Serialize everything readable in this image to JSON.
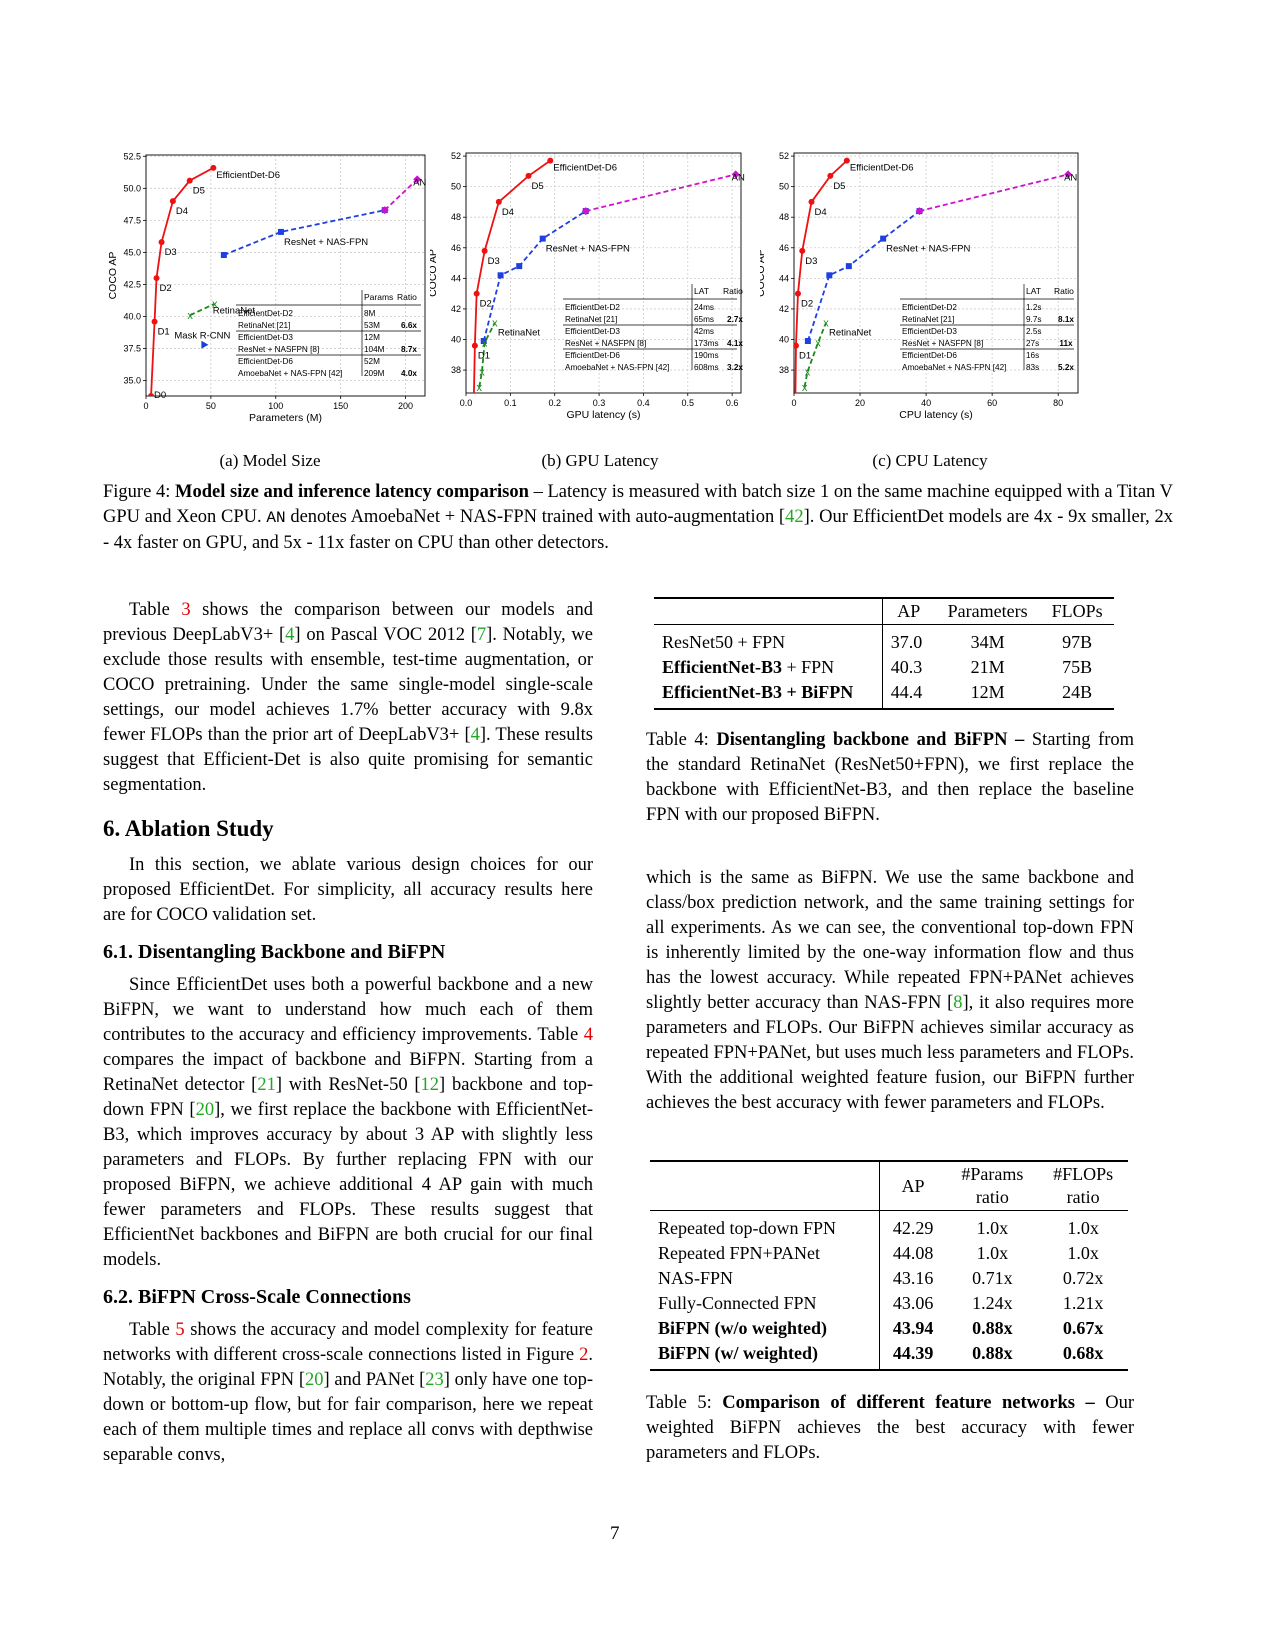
{
  "colors": {
    "efficientdet": "#ee1111",
    "resnet": "#1f3fe0",
    "amoeba": "#d010d0",
    "retinanet": "#1a8a1a",
    "maskrcnn": "#1a3fd8",
    "cite": "#22a722",
    "ref": "#e00000"
  },
  "figure": {
    "subcaptions": [
      "(a) Model Size",
      "(b) GPU Latency",
      "(c) CPU Latency"
    ],
    "caption_label": "Figure 4:",
    "caption_bold": "Model size and inference latency comparison",
    "caption_rest_1": " – Latency is measured with batch size 1 on the same machine equipped with a Titan V GPU and Xeon CPU. ",
    "caption_an": "AN",
    "caption_rest_2": " denotes AmoebaNet + NAS-FPN trained with auto-augmentation [",
    "caption_cite": "42",
    "caption_rest_3": "]. Our EfficientDet models are 4x - 9x smaller, 2x - 4x faster on GPU, and 5x - 11x faster on CPU than other detectors."
  },
  "chart_data": [
    {
      "type": "line",
      "xlabel": "Parameters (M)",
      "ylabel": "COCO AP",
      "xlim": [
        0,
        215
      ],
      "ylim": [
        33.8,
        52.6
      ],
      "xticks": [
        0,
        50,
        100,
        150,
        200
      ],
      "yticks": [
        35.0,
        37.5,
        40.0,
        42.5,
        45.0,
        47.5,
        50.0,
        52.5
      ],
      "ytick_labels": [
        "35.0",
        "37.5",
        "40.0",
        "42.5",
        "45.0",
        "47.5",
        "50.0",
        "52.5"
      ],
      "series": [
        {
          "name": "EfficientDet-D6",
          "style": "solid",
          "color": "#ee1111",
          "x": [
            3.9,
            6.6,
            8.1,
            12,
            20.7,
            33.7,
            51.9
          ],
          "y": [
            33.8,
            39.6,
            43.0,
            45.8,
            49.0,
            50.6,
            51.6
          ],
          "point_labels": [
            "D0",
            "D1",
            "D2",
            "D3",
            "D4",
            "D5",
            "EfficientDet-D6"
          ]
        },
        {
          "name": "ResNet + NAS-FPN",
          "style": "dashed",
          "color": "#1f3fe0",
          "x": [
            60,
            104,
            184
          ],
          "y": [
            44.8,
            46.6,
            48.3
          ],
          "point_labels": [
            "",
            "ResNet + NAS-FPN",
            ""
          ]
        },
        {
          "name": "AN",
          "style": "dashed",
          "color": "#d010d0",
          "x": [
            184,
            209
          ],
          "y": [
            48.3,
            50.7
          ],
          "point_labels": [
            "",
            "AN"
          ]
        },
        {
          "name": "RetinaNet",
          "style": "dashed",
          "color": "#1a8a1a",
          "x": [
            34,
            53
          ],
          "y": [
            40.1,
            41.0
          ],
          "point_labels": [
            "",
            "RetinaNet"
          ]
        },
        {
          "name": "Mask R-CNN",
          "style": "marker",
          "color": "#1a3fd8",
          "x": [
            45
          ],
          "y": [
            37.8
          ],
          "point_labels": [
            "Mask R-CNN"
          ]
        }
      ],
      "inset_table": {
        "headers": [
          "",
          "Params",
          "Ratio"
        ],
        "rows": [
          [
            "EfficientDet-D2",
            "8M",
            ""
          ],
          [
            "RetinaNet [21]",
            "53M",
            "6.6x"
          ],
          [
            "EfficientDet-D3",
            "12M",
            ""
          ],
          [
            "ResNet + NASFPN [8]",
            "104M",
            "8.7x"
          ],
          [
            "EfficientDet-D6",
            "52M",
            ""
          ],
          [
            "AmoebaNet + NAS-FPN [42]",
            "209M",
            "4.0x"
          ]
        ]
      }
    },
    {
      "type": "line",
      "xlabel": "GPU latency (s)",
      "ylabel": "COCO AP",
      "xlim": [
        0,
        0.62
      ],
      "ylim": [
        36.5,
        52.2
      ],
      "xticks": [
        0.0,
        0.1,
        0.2,
        0.3,
        0.4,
        0.5,
        0.6
      ],
      "yticks": [
        38,
        40,
        42,
        44,
        46,
        48,
        50,
        52
      ],
      "ytick_labels": [
        "38",
        "40",
        "42",
        "44",
        "46",
        "48",
        "50",
        "52"
      ],
      "series": [
        {
          "name": "EfficientDet-D6",
          "style": "solid",
          "color": "#ee1111",
          "x": [
            0.016,
            0.02,
            0.024,
            0.042,
            0.074,
            0.141,
            0.19
          ],
          "y": [
            33.8,
            39.6,
            43.0,
            45.8,
            49.0,
            50.7,
            51.7
          ],
          "point_labels": [
            "",
            "D1",
            "D2",
            "D3",
            "D4",
            "D5",
            "EfficientDet-D6"
          ]
        },
        {
          "name": "ResNet + NAS-FPN",
          "style": "dashed",
          "color": "#1f3fe0",
          "x": [
            0.04,
            0.078,
            0.12,
            0.173,
            0.27
          ],
          "y": [
            39.9,
            44.2,
            44.8,
            46.6,
            48.4
          ],
          "point_labels": [
            "",
            "",
            "",
            "ResNet + NAS-FPN",
            ""
          ]
        },
        {
          "name": "AN",
          "style": "dashed",
          "color": "#d010d0",
          "x": [
            0.27,
            0.608
          ],
          "y": [
            48.4,
            50.8
          ],
          "point_labels": [
            "",
            "AN"
          ]
        },
        {
          "name": "RetinaNet",
          "style": "dashed",
          "color": "#1a8a1a",
          "x": [
            0.03,
            0.036,
            0.042,
            0.065
          ],
          "y": [
            36.9,
            37.9,
            39.8,
            41.1
          ],
          "point_labels": [
            "",
            "",
            "",
            "RetinaNet"
          ]
        }
      ],
      "inset_table": {
        "headers": [
          "",
          "LAT",
          "Ratio"
        ],
        "rows": [
          [
            "EfficientDet-D2",
            "24ms",
            ""
          ],
          [
            "RetinaNet [21]",
            "65ms",
            "2.7x"
          ],
          [
            "EfficientDet-D3",
            "42ms",
            ""
          ],
          [
            "ResNet + NASFPN [8]",
            "173ms",
            "4.1x"
          ],
          [
            "EfficientDet-D6",
            "190ms",
            ""
          ],
          [
            "AmoebaNet + NAS-FPN [42]",
            "608ms",
            "3.2x"
          ]
        ]
      }
    },
    {
      "type": "line",
      "xlabel": "CPU latency (s)",
      "ylabel": "COCO AP",
      "xlim": [
        0,
        86
      ],
      "ylim": [
        36.5,
        52.2
      ],
      "xticks": [
        0,
        20,
        40,
        60,
        80
      ],
      "yticks": [
        38,
        40,
        42,
        44,
        46,
        48,
        50,
        52
      ],
      "ytick_labels": [
        "38",
        "40",
        "42",
        "44",
        "46",
        "48",
        "50",
        "52"
      ],
      "series": [
        {
          "name": "EfficientDet-D6",
          "style": "solid",
          "color": "#ee1111",
          "x": [
            0.3,
            0.6,
            1.2,
            2.5,
            5.3,
            11,
            16
          ],
          "y": [
            33.8,
            39.6,
            43.0,
            45.8,
            49.0,
            50.7,
            51.7
          ],
          "point_labels": [
            "",
            "D1",
            "D2",
            "D3",
            "D4",
            "D5",
            "EfficientDet-D6"
          ]
        },
        {
          "name": "ResNet + NAS-FPN",
          "style": "dashed",
          "color": "#1f3fe0",
          "x": [
            4.2,
            10.7,
            16.6,
            27,
            38
          ],
          "y": [
            39.9,
            44.2,
            44.8,
            46.6,
            48.4
          ],
          "point_labels": [
            "",
            "",
            "",
            "ResNet + NAS-FPN",
            ""
          ]
        },
        {
          "name": "AN",
          "style": "dashed",
          "color": "#d010d0",
          "x": [
            38,
            83
          ],
          "y": [
            48.4,
            50.8
          ],
          "point_labels": [
            "",
            "AN"
          ]
        },
        {
          "name": "RetinaNet",
          "style": "dashed",
          "color": "#1a8a1a",
          "x": [
            3.2,
            4.1,
            7.3,
            9.7
          ],
          "y": [
            36.9,
            37.9,
            39.8,
            41.1
          ],
          "point_labels": [
            "",
            "",
            "",
            "RetinaNet"
          ]
        }
      ],
      "inset_table": {
        "headers": [
          "",
          "LAT",
          "Ratio"
        ],
        "rows": [
          [
            "EfficientDet-D2",
            "1.2s",
            ""
          ],
          [
            "RetinaNet [21]",
            "9.7s",
            "8.1x"
          ],
          [
            "EfficientDet-D3",
            "2.5s",
            ""
          ],
          [
            "ResNet + NASFPN [8]",
            "27s",
            "11x"
          ],
          [
            "EfficientDet-D6",
            "16s",
            ""
          ],
          [
            "AmoebaNet + NAS-FPN [42]",
            "83s",
            "5.2x"
          ]
        ]
      }
    }
  ],
  "left": {
    "p1": {
      "a": "Table ",
      "r1": "3",
      "b": " shows the comparison between our models and previous DeepLabV3+ [",
      "c1": "4",
      "c": "] on Pascal VOC 2012 [",
      "c2": "7",
      "d": "]. Notably, we exclude those results with ensemble, test-time augmentation, or COCO pretraining.  Under the same single-model single-scale settings, our model achieves 1.7% better accuracy with 9.8x fewer FLOPs than the prior art of DeepLabV3+ [",
      "c3": "4",
      "e": "]. These results suggest that Efficient-Det is also quite promising for semantic segmentation."
    },
    "h_ablation": "6. Ablation Study",
    "p2": "In this section, we ablate various design choices for our proposed EfficientDet. For simplicity, all accuracy results here are for COCO validation set.",
    "h_61": "6.1. Disentangling Backbone and BiFPN",
    "p3": {
      "a": "Since EfficientDet uses both a powerful backbone and a new BiFPN, we want to understand how much each of them contributes to the accuracy and efficiency improvements. Table ",
      "r1": "4",
      "b": " compares the impact of backbone and BiFPN. Starting from a RetinaNet detector [",
      "c1": "21",
      "c": "] with ResNet-50 [",
      "c2": "12",
      "d": "] backbone and top-down FPN [",
      "c3": "20",
      "e": "], we first replace the backbone with EfficientNet-B3, which improves accuracy by about 3 AP with slightly less parameters and FLOPs. By further replacing FPN with our proposed BiFPN, we achieve additional 4 AP gain with much fewer parameters and FLOPs. These results suggest that EfficientNet backbones and BiFPN are both crucial for our final models."
    },
    "h_62": "6.2. BiFPN Cross-Scale Connections",
    "p4": {
      "a": "Table ",
      "r1": "5",
      "b": " shows the accuracy and model complexity for feature networks with different cross-scale connections listed in Figure ",
      "r2": "2",
      "c": ".  Notably, the original FPN [",
      "c1": "20",
      "d": "] and PANet [",
      "c2": "23",
      "e": "] only have one top-down or bottom-up flow, but for fair comparison, here we repeat each of them multiple times and replace all convs with depthwise separable convs,"
    }
  },
  "table4": {
    "headers": [
      "",
      "AP",
      "Parameters",
      "FLOPs"
    ],
    "rows": [
      {
        "name_bold": "",
        "name_plain": "ResNet50 + FPN",
        "ap": "37.0",
        "params": "34M",
        "flops": "97B"
      },
      {
        "name_bold": "EfficientNet-B3",
        "name_plain": " + FPN",
        "ap": "40.3",
        "params": "21M",
        "flops": "75B"
      },
      {
        "name_bold": "EfficientNet-B3",
        "name_plain": " + BiFPN",
        "ap": "44.4",
        "params": "12M",
        "flops": "24B"
      }
    ],
    "caption_label": "Table 4:",
    "caption_bold": "Disentangling backbone and BiFPN –",
    "caption_rest": " Starting from the standard RetinaNet (ResNet50+FPN), we first replace the backbone with EfficientNet-B3, and then replace the baseline FPN with our proposed BiFPN."
  },
  "right_p1": {
    "a": "which is the same as BiFPN. We use the same backbone and class/box prediction network, and the same training settings for all experiments.  As we can see, the conventional top-down FPN is inherently limited by the one-way information flow and thus has the lowest accuracy. While repeated FPN+PANet achieves slightly better accuracy than NAS-FPN [",
    "c1": "8",
    "b": "], it also requires more parameters and FLOPs. Our BiFPN achieves similar accuracy as repeated FPN+PANet, but uses much less parameters and FLOPs. With the additional weighted feature fusion, our BiFPN further achieves the best accuracy with fewer parameters and FLOPs."
  },
  "table5": {
    "h_ap": "AP",
    "h_params_1": "#Params",
    "h_params_2": "ratio",
    "h_flops_1": "#FLOPs",
    "h_flops_2": "ratio",
    "rows": [
      {
        "name": "Repeated top-down FPN",
        "ap": "42.29",
        "params": "1.0x",
        "flops": "1.0x",
        "bold": false
      },
      {
        "name": "Repeated FPN+PANet",
        "ap": "44.08",
        "params": "1.0x",
        "flops": "1.0x",
        "bold": false
      },
      {
        "name": "NAS-FPN",
        "ap": "43.16",
        "params": "0.71x",
        "flops": "0.72x",
        "bold": false
      },
      {
        "name": "Fully-Connected FPN",
        "ap": "43.06",
        "params": "1.24x",
        "flops": "1.21x",
        "bold": false
      },
      {
        "name": "BiFPN (w/o weighted)",
        "ap": "43.94",
        "params": "0.88x",
        "flops": "0.67x",
        "bold": true
      },
      {
        "name": "BiFPN (w/ weighted)",
        "ap": "44.39",
        "params": "0.88x",
        "flops": "0.68x",
        "bold": true
      }
    ],
    "caption_label": "Table 5:",
    "caption_bold": "Comparison of different feature networks –",
    "caption_rest": " Our weighted BiFPN achieves the best accuracy with fewer parameters and FLOPs."
  },
  "page_number": "7"
}
